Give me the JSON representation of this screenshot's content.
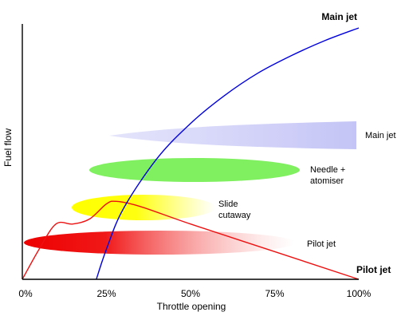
{
  "chart_data": {
    "type": "line",
    "title": "",
    "xlabel": "Throttle opening",
    "ylabel": "Fuel flow",
    "xlim": [
      0,
      100
    ],
    "x_ticks": [
      "0%",
      "25%",
      "50%",
      "75%",
      "100%"
    ],
    "grid": false,
    "series": [
      {
        "name": "Main jet",
        "color": "#0000dd",
        "x": [
          22,
          25,
          30,
          40,
          50,
          60,
          70,
          80,
          90,
          100
        ],
        "y": [
          0,
          12,
          28,
          48,
          62,
          73,
          82,
          89,
          95,
          100
        ]
      },
      {
        "name": "Pilot jet",
        "color": "#ee1111",
        "x": [
          0,
          5,
          10,
          15,
          20,
          25,
          28,
          35,
          50,
          75,
          100
        ],
        "y": [
          0,
          12,
          22,
          22,
          24,
          30,
          31,
          29,
          22,
          11,
          0
        ]
      }
    ],
    "bands": [
      {
        "label": "Main jet",
        "color": "#c8c8f8",
        "x_start": 25,
        "x_end": 100,
        "y": 59
      },
      {
        "label": "Needle + atomiser",
        "line1": "Needle +",
        "line2": "atomiser",
        "color": "#80f060",
        "x_start": 20,
        "x_end": 86,
        "y": 43
      },
      {
        "label": "Slide cutaway",
        "line1": "Slide",
        "line2": "cutaway",
        "color": "#ffff00",
        "x_start": 14,
        "x_end": 56,
        "y": 28
      },
      {
        "label": "Pilot jet",
        "color": "#ee0000",
        "x_start": 0,
        "x_end": 83,
        "y": 14
      }
    ]
  }
}
